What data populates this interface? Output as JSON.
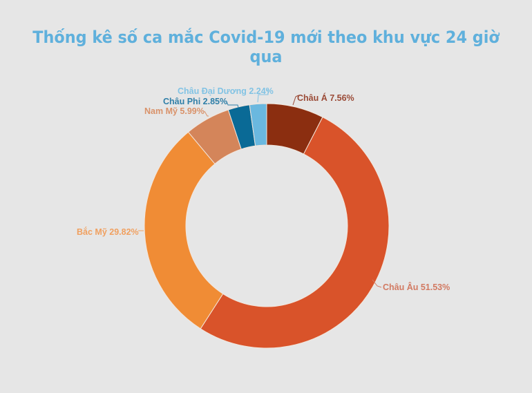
{
  "title": "Thống kê số ca mắc Covid-19 mới theo khu vực 24 giờ qua",
  "background": "#e6e6e6",
  "title_color": "#5fb0dc",
  "chart_data": {
    "type": "pie",
    "subtype": "donut",
    "title": "Thống kê số ca mắc Covid-19 mới theo khu vực 24 giờ qua",
    "start_angle": "12 o'clock, clockwise",
    "categories": [
      "Châu Á",
      "Châu Âu",
      "Bắc Mỹ",
      "Nam Mỹ",
      "Châu Phi",
      "Châu Đại Dương"
    ],
    "values": [
      7.56,
      51.53,
      29.82,
      5.99,
      2.85,
      2.24
    ],
    "unit": "%",
    "colors": [
      "#8b2e10",
      "#d9532a",
      "#f08c35",
      "#d4855a",
      "#0a6a96",
      "#6ab8df"
    ],
    "labels": [
      {
        "text": "Châu Á 7.56%",
        "color": "#9a4a36"
      },
      {
        "text": "Châu Âu 51.53%",
        "color": "#d27a62"
      },
      {
        "text": "Bắc Mỹ 29.82%",
        "color": "#f0a060"
      },
      {
        "text": "Nam Mỹ 5.99%",
        "color": "#d9926a"
      },
      {
        "text": "Châu Phi  2.85%",
        "color": "#2f7fa8"
      },
      {
        "text": "Châu Đại Dương 2.24%",
        "color": "#82c3e4"
      }
    ]
  }
}
